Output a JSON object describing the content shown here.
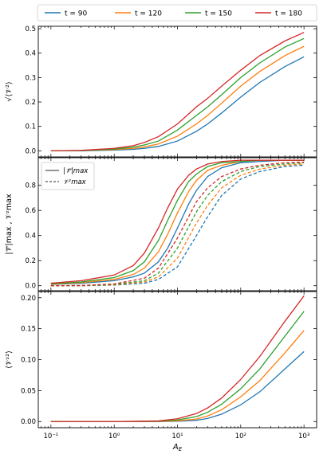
{
  "colors": {
    "t90": "#1f77b4",
    "t120": "#ff7f0e",
    "t150": "#2ca02c",
    "t180": "#d62728"
  },
  "legend": {
    "entries": [
      "t = 90",
      "t = 120",
      "t = 150",
      "t = 180"
    ]
  },
  "chart_data": [
    {
      "type": "line",
      "ylabel": "√⟨𝒱²⟩",
      "xscale": "log",
      "xlim": [
        0.0631,
        1585
      ],
      "ylim": [
        -0.025,
        0.51
      ],
      "yticks": [
        0.0,
        0.1,
        0.2,
        0.3,
        0.4,
        0.5
      ],
      "ytick_labels": [
        "0.0",
        "0.1",
        "0.2",
        "0.3",
        "0.4",
        "0.5"
      ],
      "series": [
        {
          "name": "t = 90",
          "color": "#1f77b4",
          "x": [
            0.1,
            0.3,
            1,
            2,
            3,
            5,
            10,
            20,
            30,
            50,
            100,
            200,
            500,
            1000
          ],
          "y": [
            0.0,
            0.0,
            0.003,
            0.006,
            0.01,
            0.018,
            0.04,
            0.08,
            0.11,
            0.155,
            0.22,
            0.28,
            0.345,
            0.385
          ]
        },
        {
          "name": "t = 120",
          "color": "#ff7f0e",
          "x": [
            0.1,
            0.3,
            1,
            2,
            3,
            5,
            10,
            20,
            30,
            50,
            100,
            200,
            500,
            1000
          ],
          "y": [
            0.0,
            0.001,
            0.005,
            0.01,
            0.016,
            0.028,
            0.06,
            0.11,
            0.145,
            0.195,
            0.265,
            0.325,
            0.39,
            0.428
          ]
        },
        {
          "name": "t = 150",
          "color": "#2ca02c",
          "x": [
            0.1,
            0.3,
            1,
            2,
            3,
            5,
            10,
            20,
            30,
            50,
            100,
            200,
            500,
            1000
          ],
          "y": [
            0.0,
            0.001,
            0.007,
            0.015,
            0.024,
            0.04,
            0.085,
            0.145,
            0.18,
            0.23,
            0.3,
            0.36,
            0.425,
            0.46
          ]
        },
        {
          "name": "t = 180",
          "color": "#d62728",
          "x": [
            0.1,
            0.3,
            1,
            2,
            3,
            5,
            10,
            20,
            30,
            50,
            100,
            200,
            500,
            1000
          ],
          "y": [
            0.0,
            0.002,
            0.01,
            0.021,
            0.034,
            0.058,
            0.11,
            0.18,
            0.215,
            0.265,
            0.33,
            0.39,
            0.45,
            0.485
          ]
        }
      ]
    },
    {
      "type": "line",
      "ylabel": "|𝒱⃗|max ,  𝒱ᶻmax",
      "xscale": "log",
      "xlim": [
        0.0631,
        1585
      ],
      "ylim": [
        -0.04,
        1.02
      ],
      "yticks": [
        0.0,
        0.2,
        0.4,
        0.6,
        0.8
      ],
      "ytick_labels": [
        "0.0",
        "0.2",
        "0.4",
        "0.6",
        "0.8"
      ],
      "legend": {
        "placement": "top-left",
        "entries": [
          "|𝒱⃗|max",
          "𝒱ᶻmax"
        ],
        "styles": [
          "solid",
          "dashed"
        ]
      },
      "series": [
        {
          "name": "t = 90",
          "color": "#1f77b4",
          "style": "solid",
          "x": [
            0.1,
            0.3,
            1,
            2,
            3,
            5,
            7,
            10,
            15,
            20,
            30,
            50,
            100,
            200,
            500,
            1000
          ],
          "y": [
            0.01,
            0.02,
            0.04,
            0.07,
            0.1,
            0.19,
            0.3,
            0.46,
            0.65,
            0.76,
            0.87,
            0.94,
            0.98,
            0.99,
            1.0,
            1.0
          ]
        },
        {
          "name": "t = 120",
          "color": "#ff7f0e",
          "style": "solid",
          "x": [
            0.1,
            0.3,
            1,
            2,
            3,
            5,
            7,
            10,
            15,
            20,
            30,
            50,
            100,
            200,
            500,
            1000
          ],
          "y": [
            0.012,
            0.025,
            0.05,
            0.09,
            0.14,
            0.27,
            0.41,
            0.58,
            0.75,
            0.84,
            0.92,
            0.96,
            0.99,
            1.0,
            1.0,
            1.0
          ]
        },
        {
          "name": "t = 150",
          "color": "#2ca02c",
          "style": "solid",
          "x": [
            0.1,
            0.3,
            1,
            2,
            3,
            5,
            7,
            10,
            15,
            20,
            30,
            50,
            100,
            200,
            500,
            1000
          ],
          "y": [
            0.015,
            0.03,
            0.065,
            0.12,
            0.19,
            0.36,
            0.52,
            0.68,
            0.83,
            0.89,
            0.95,
            0.98,
            0.99,
            1.0,
            1.0,
            1.0
          ]
        },
        {
          "name": "t = 180",
          "color": "#d62728",
          "style": "solid",
          "x": [
            0.1,
            0.3,
            1,
            2,
            3,
            5,
            7,
            10,
            15,
            20,
            30,
            50,
            100,
            200,
            500,
            1000
          ],
          "y": [
            0.02,
            0.04,
            0.085,
            0.16,
            0.26,
            0.46,
            0.62,
            0.77,
            0.88,
            0.93,
            0.97,
            0.99,
            1.0,
            1.0,
            1.0,
            1.0
          ]
        },
        {
          "name": "t = 90",
          "color": "#1f77b4",
          "style": "dashed",
          "x": [
            0.1,
            0.3,
            1,
            3,
            5,
            10,
            20,
            30,
            50,
            100,
            200,
            500,
            1000
          ],
          "y": [
            0.0,
            0.0,
            0.005,
            0.02,
            0.05,
            0.15,
            0.4,
            0.55,
            0.72,
            0.85,
            0.91,
            0.95,
            0.96
          ]
        },
        {
          "name": "t = 120",
          "color": "#ff7f0e",
          "style": "dashed",
          "x": [
            0.1,
            0.3,
            1,
            3,
            5,
            10,
            20,
            30,
            50,
            100,
            200,
            500,
            1000
          ],
          "y": [
            0.0,
            0.0,
            0.007,
            0.03,
            0.07,
            0.22,
            0.5,
            0.64,
            0.78,
            0.88,
            0.93,
            0.96,
            0.97
          ]
        },
        {
          "name": "t = 150",
          "color": "#2ca02c",
          "style": "dashed",
          "x": [
            0.1,
            0.3,
            1,
            3,
            5,
            10,
            20,
            30,
            50,
            100,
            200,
            500,
            1000
          ],
          "y": [
            0.0,
            0.001,
            0.01,
            0.04,
            0.1,
            0.3,
            0.59,
            0.72,
            0.83,
            0.91,
            0.95,
            0.97,
            0.98
          ]
        },
        {
          "name": "t = 180",
          "color": "#d62728",
          "style": "dashed",
          "x": [
            0.1,
            0.3,
            1,
            3,
            5,
            10,
            20,
            30,
            50,
            100,
            200,
            500,
            1000
          ],
          "y": [
            0.0,
            0.002,
            0.014,
            0.06,
            0.14,
            0.38,
            0.67,
            0.78,
            0.87,
            0.93,
            0.96,
            0.98,
            0.985
          ]
        }
      ]
    },
    {
      "type": "line",
      "ylabel": "⟨𝒱ᶻ²⟩",
      "xlabel": "A_E",
      "xscale": "log",
      "xlim": [
        0.0631,
        1585
      ],
      "ylim": [
        -0.01,
        0.21
      ],
      "yticks": [
        0.0,
        0.05,
        0.1,
        0.15,
        0.2
      ],
      "ytick_labels": [
        "0.00",
        "0.05",
        "0.10",
        "0.15",
        "0.20"
      ],
      "xticks": [
        0.1,
        1,
        10,
        100,
        1000
      ],
      "xtick_labels": [
        "10⁻¹",
        "10⁰",
        "10¹",
        "10²",
        "10³"
      ],
      "series": [
        {
          "name": "t = 90",
          "color": "#1f77b4",
          "x": [
            0.1,
            1,
            5,
            10,
            20,
            30,
            50,
            100,
            200,
            500,
            1000
          ],
          "y": [
            0.0,
            0.0,
            0.0,
            0.0005,
            0.002,
            0.005,
            0.012,
            0.027,
            0.048,
            0.085,
            0.113
          ]
        },
        {
          "name": "t = 120",
          "color": "#ff7f0e",
          "x": [
            0.1,
            1,
            5,
            10,
            20,
            30,
            50,
            100,
            200,
            500,
            1000
          ],
          "y": [
            0.0,
            0.0,
            0.0002,
            0.0012,
            0.004,
            0.009,
            0.019,
            0.04,
            0.066,
            0.111,
            0.147
          ]
        },
        {
          "name": "t = 150",
          "color": "#2ca02c",
          "x": [
            0.1,
            1,
            5,
            10,
            20,
            30,
            50,
            100,
            200,
            500,
            1000
          ],
          "y": [
            0.0,
            0.0,
            0.0005,
            0.0025,
            0.008,
            0.015,
            0.028,
            0.053,
            0.085,
            0.138,
            0.178
          ]
        },
        {
          "name": "t = 180",
          "color": "#d62728",
          "x": [
            0.1,
            1,
            5,
            10,
            20,
            30,
            50,
            100,
            200,
            500,
            1000
          ],
          "y": [
            0.0,
            0.0,
            0.001,
            0.0045,
            0.013,
            0.022,
            0.038,
            0.068,
            0.105,
            0.162,
            0.203
          ]
        }
      ]
    }
  ]
}
